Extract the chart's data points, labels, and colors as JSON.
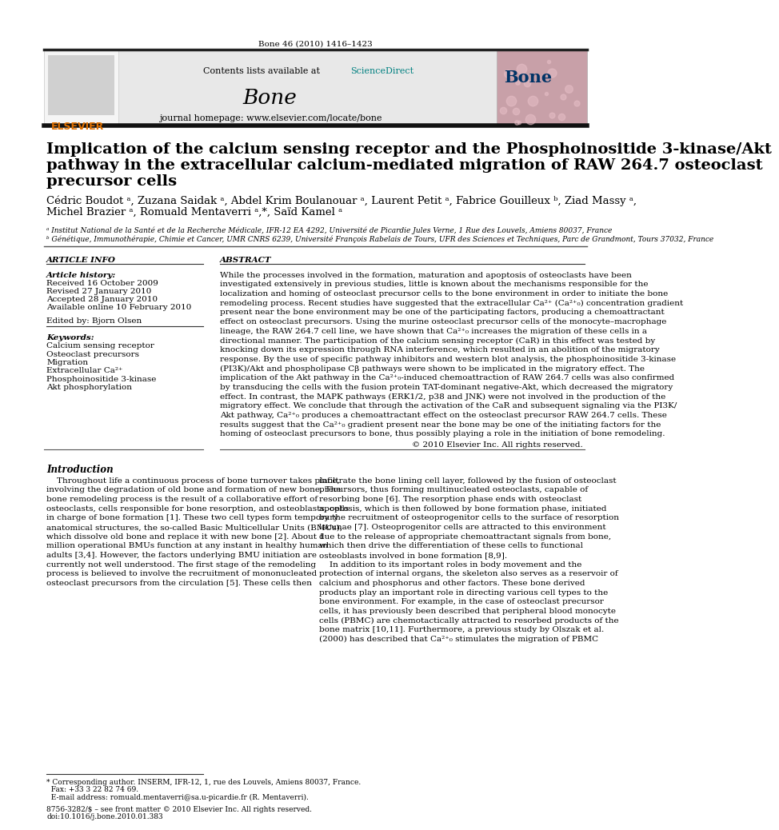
{
  "journal_ref": "Bone 46 (2010) 1416–1423",
  "contents_text": "Contents lists available at ",
  "sciencedirect_text": "ScienceDirect",
  "journal_name": "Bone",
  "journal_homepage": "journal homepage: www.elsevier.com/locate/bone",
  "title_line1": "Implication of the calcium sensing receptor and the Phosphoinositide 3-kinase/Akt",
  "title_line2": "pathway in the extracellular calcium-mediated migration of RAW 264.7 osteoclast",
  "title_line3": "precursor cells",
  "authors_line1": "Cédric Boudot ᵃ, Zuzana Saidak ᵃ, Abdel Krim Boulanouar ᵃ, Laurent Petit ᵃ, Fabrice Gouilleux ᵇ, Ziad Massy ᵃ,",
  "authors_line2": "Michel Brazier ᵃ, Romuald Mentaverri ᵃ,*, Saïd Kamel ᵃ",
  "affil_a": "ᵃ Institut National de la Santé et de la Recherche Médicale, IFR-12 EA 4292, Université de Picardie Jules Verne, 1 Rue des Louvels, Amiens 80037, France",
  "affil_b": "ᵇ Génétique, Immunothérapie, Chimie et Cancer, UMR CNRS 6239, Université François Rabelais de Tours, UFR des Sciences et Techniques, Parc de Grandmont, Tours 37032, France",
  "article_info_header": "ARTICLE INFO",
  "abstract_header": "ABSTRACT",
  "article_history_label": "Article history:",
  "received": "Received 16 October 2009",
  "revised": "Revised 27 January 2010",
  "accepted": "Accepted 28 January 2010",
  "available": "Available online 10 February 2010",
  "edited_by": "Edited by: Bjorn Olsen",
  "keywords_label": "Keywords:",
  "keywords": [
    "Calcium sensing receptor",
    "Osteoclast precursors",
    "Migration",
    "Extracellular Ca²⁺",
    "Phosphoinositide 3-kinase",
    "Akt phosphorylation"
  ],
  "abstract_text": "While the processes involved in the formation, maturation and apoptosis of osteoclasts have been\ninvestigated extensively in previous studies, little is known about the mechanisms responsible for the\nlocalization and homing of osteoclast precursor cells to the bone environment in order to initiate the bone\nremodeling process. Recent studies have suggested that the extracellular Ca²⁺ (Ca²⁺₀) concentration gradient\npresent near the bone environment may be one of the participating factors, producing a chemoattractant\neffect on osteoclast precursors. Using the murine osteoclast precursor cells of the monocyte–macrophage\nlineage, the RAW 264.7 cell line, we have shown that Ca²⁺₀ increases the migration of these cells in a\ndirectional manner. The participation of the calcium sensing receptor (CaR) in this effect was tested by\nknocking down its expression through RNA interference, which resulted in an abolition of the migratory\nresponse. By the use of specific pathway inhibitors and western blot analysis, the phosphoinositide 3-kinase\n(PI3K)/Akt and phospholipase Cβ pathways were shown to be implicated in the migratory effect. The\nimplication of the Akt pathway in the Ca²⁺₀-induced chemoattraction of RAW 264.7 cells was also confirmed\nby transducing the cells with the fusion protein TAT-dominant negative-Akt, which decreased the migratory\neffect. In contrast, the MAPK pathways (ERK1/2, p38 and JNK) were not involved in the production of the\nmigratory effect. We conclude that through the activation of the CaR and subsequent signaling via the PI3K/\nAkt pathway, Ca²⁺₀ produces a chemoattractant effect on the osteoclast precursor RAW 264.7 cells. These\nresults suggest that the Ca²⁺₀ gradient present near the bone may be one of the initiating factors for the\nhoming of osteoclast precursors to bone, thus possibly playing a role in the initiation of bone remodeling.",
  "copyright": "© 2010 Elsevier Inc. All rights reserved.",
  "intro_header": "Introduction",
  "intro_text_left": "    Throughout life a continuous process of bone turnover takes place,\ninvolving the degradation of old bone and formation of new bone. The\nbone remodeling process is the result of a collaborative effort of\nosteoclasts, cells responsible for bone resorption, and osteoblasts, cells\nin charge of bone formation [1]. These two cell types form temporary\nanatomical structures, the so-called Basic Multicellular Units (BMUs),\nwhich dissolve old bone and replace it with new bone [2]. About 1\nmillion operational BMUs function at any instant in healthy human\nadults [3,4]. However, the factors underlying BMU initiation are\ncurrently not well understood. The first stage of the remodeling\nprocess is believed to involve the recruitment of mononucleated\nosteoclast precursors from the circulation [5]. These cells then",
  "intro_text_right": "infiltrate the bone lining cell layer, followed by the fusion of osteoclast\nprecursors, thus forming multinucleated osteoclasts, capable of\nresorbing bone [6]. The resorption phase ends with osteoclast\napoptosis, which is then followed by bone formation phase, initiated\nby the recruitment of osteoprogenitor cells to the surface of resorption\nlacunae [7]. Osteoprogenitor cells are attracted to this environment\ndue to the release of appropriate chemoattractant signals from bone,\nwhich then drive the differentiation of these cells to functional\nosteoblasts involved in bone formation [8,9].\n    In addition to its important roles in body movement and the\nprotection of internal organs, the skeleton also serves as a reservoir of\ncalcium and phosphorus and other factors. These bone derived\nproducts play an important role in directing various cell types to the\nbone environment. For example, in the case of osteoclast precursor\ncells, it has previously been described that peripheral blood monocyte\ncells (PBMC) are chemotactically attracted to resorbed products of the\nbone matrix [10,11]. Furthermore, a previous study by Olszak et al.\n(2000) has described that Ca²⁺₀ stimulates the migration of PBMC",
  "footnote_corresponding": "* Corresponding author. INSERM, IFR-12, 1, rue des Louvels, Amiens 80037, France.",
  "footnote_fax": "  Fax: +33 3 22 82 74 69.",
  "footnote_email": "  E-mail address: romuald.mentaverri@sa.u-picardie.fr (R. Mentaverri).",
  "footnote_issn": "8756-3282/$ – see front matter © 2010 Elsevier Inc. All rights reserved.",
  "footnote_doi": "doi:10.1016/j.bone.2010.01.383",
  "bg_color": "#ffffff",
  "header_bg": "#e8e8e8",
  "text_color": "#000000",
  "teal_color": "#008080",
  "elsevier_color": "#E07000",
  "bone_title_color": "#003366"
}
